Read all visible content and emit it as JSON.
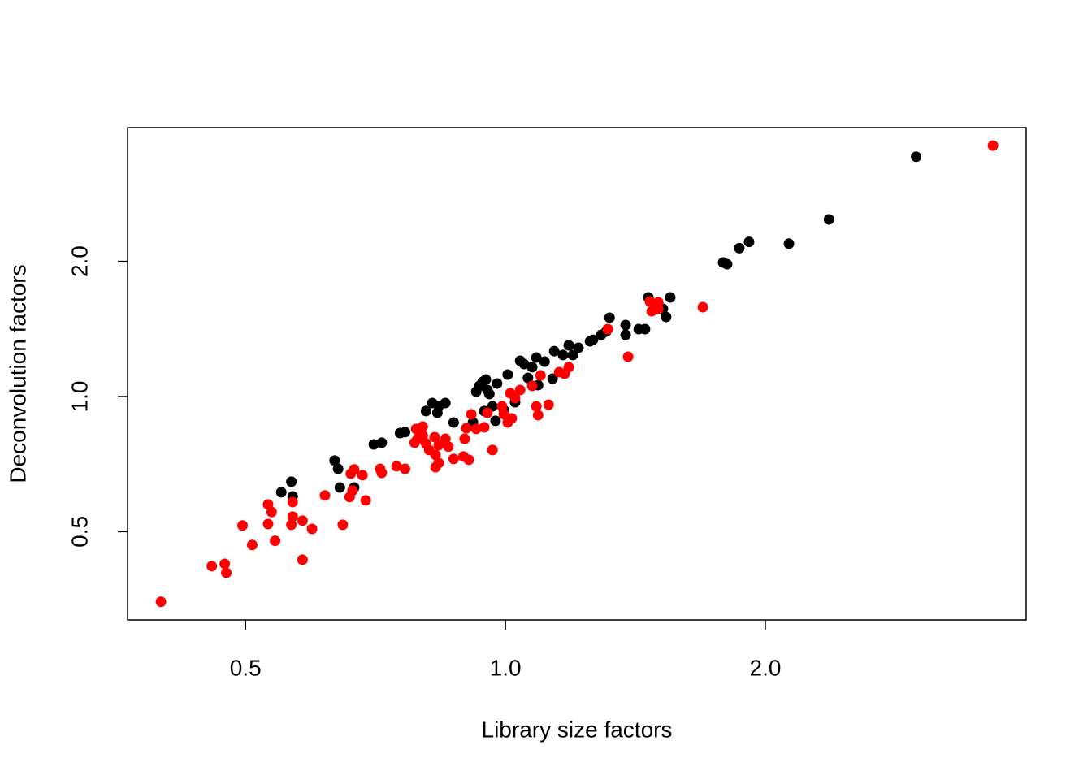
{
  "chart_data": {
    "type": "scatter",
    "xlabel": "Library size factors",
    "ylabel": "Deconvolution factors",
    "xlog": true,
    "ylog": true,
    "xlim": [
      0.365,
      4.01
    ],
    "ylim": [
      0.318,
      3.97
    ],
    "xticks": [
      {
        "value": 0.5,
        "label": "0.5"
      },
      {
        "value": 1,
        "label": "1.0"
      },
      {
        "value": 2,
        "label": "2.0"
      }
    ],
    "yticks": [
      {
        "value": 0.5,
        "label": "0.5"
      },
      {
        "value": 1,
        "label": "1.0"
      },
      {
        "value": 2,
        "label": "2.0"
      }
    ],
    "series": [
      {
        "color": "#000000",
        "x": [
          2.99,
          2.37,
          2.13,
          1.915,
          1.866,
          1.806,
          1.787,
          1.552,
          1.464,
          1.535,
          1.509,
          1.49,
          1.522,
          1.451,
          1.427,
          1.378,
          1.378,
          1.32,
          1.308,
          1.291,
          1.263,
          1.253,
          1.215,
          1.197,
          1.184,
          1.166,
          1.139,
          1.11,
          1.086,
          1.074,
          1.062,
          1.051,
          1.04,
          1.134,
          1.091,
          1.006,
          0.978,
          0.953,
          0.949,
          0.941,
          0.933,
          0.925,
          0.958,
          0.966,
          0.945,
          0.917,
          0.871,
          0.852,
          0.834,
          0.809,
          0.837,
          0.823,
          0.765,
          0.755,
          0.719,
          0.704,
          0.634,
          0.64,
          0.643,
          0.565,
          0.55,
          0.567,
          0.668,
          1.026,
          0.996,
          0.974
        ],
        "y": [
          3.42,
          2.48,
          2.19,
          2.21,
          2.14,
          1.971,
          1.988,
          1.662,
          1.662,
          1.504,
          1.581,
          1.601,
          1.568,
          1.413,
          1.413,
          1.443,
          1.372,
          1.498,
          1.395,
          1.372,
          1.338,
          1.327,
          1.284,
          1.237,
          1.3,
          1.237,
          1.262,
          1.196,
          1.221,
          1.162,
          1.1,
          1.181,
          1.201,
          1.096,
          1.06,
          1.119,
          1.069,
          1.034,
          1.091,
          1.078,
          1.056,
          1.025,
          1.013,
          0.951,
          0.928,
          0.875,
          0.875,
          0.967,
          0.92,
          0.928,
          0.951,
          0.967,
          0.833,
          0.829,
          0.789,
          0.782,
          0.72,
          0.69,
          0.627,
          0.646,
          0.612,
          0.599,
          0.627,
          0.971,
          0.932,
          0.883
        ]
      },
      {
        "color": "#ff0000",
        "x": [
          3.67,
          1.693,
          1.503,
          1.47,
          1.387,
          1.314,
          1.184,
          1.171,
          1.098,
          1.074,
          1.04,
          1.086,
          1.122,
          1.091,
          1.026,
          1.013,
          0.991,
          1.006,
          1.017,
          0.996,
          0.953,
          0.945,
          0.925,
          0.913,
          0.901,
          0.897,
          0.894,
          0.907,
          0.871,
          0.859,
          0.852,
          0.837,
          0.828,
          0.816,
          0.802,
          0.791,
          0.785,
          0.809,
          0.788,
          0.802,
          0.83,
          0.837,
          0.83,
          0.765,
          0.748,
          0.719,
          0.716,
          0.683,
          0.689,
          0.668,
          0.665,
          0.66,
          0.662,
          0.648,
          0.618,
          0.597,
          0.582,
          0.567,
          0.567,
          0.565,
          0.531,
          0.536,
          0.531,
          0.541,
          0.509,
          0.496,
          0.582,
          0.473,
          0.457,
          0.475,
          0.399,
          0.966,
          1.477,
          1.503,
          1.154
        ],
        "y": [
          3.62,
          1.581,
          1.621,
          1.628,
          1.226,
          1.413,
          1.162,
          1.124,
          1.114,
          1.056,
          1.034,
          0.951,
          0.959,
          0.909,
          0.992,
          1.017,
          0.951,
          0.875,
          0.894,
          0.913,
          0.92,
          0.854,
          0.847,
          0.913,
          0.85,
          0.805,
          0.735,
          0.723,
          0.726,
          0.773,
          0.805,
          0.779,
          0.812,
          0.76,
          0.819,
          0.805,
          0.789,
          0.786,
          0.847,
          0.857,
          0.741,
          0.711,
          0.696,
          0.69,
          0.699,
          0.676,
          0.69,
          0.668,
          0.587,
          0.688,
          0.617,
          0.597,
          0.673,
          0.518,
          0.602,
          0.507,
          0.529,
          0.582,
          0.54,
          0.518,
          0.575,
          0.553,
          0.52,
          0.477,
          0.467,
          0.516,
          0.433,
          0.424,
          0.419,
          0.405,
          0.349,
          0.76,
          1.548,
          1.568,
          1.133
        ]
      }
    ]
  }
}
